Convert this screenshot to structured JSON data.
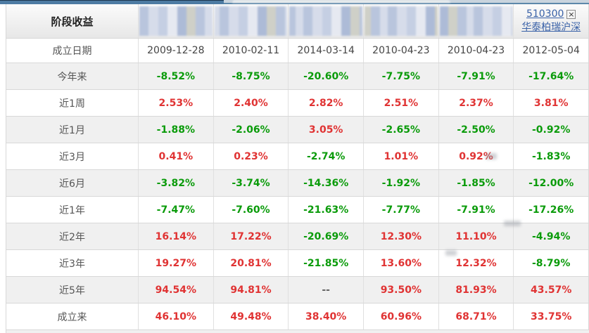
{
  "header": {
    "title": "阶段收益",
    "blurred_fund_count": 5,
    "selected_fund": {
      "code": "510300",
      "name": "华泰柏瑞沪深",
      "close_glyph": "×"
    }
  },
  "colors": {
    "positive_red": "#e03333",
    "negative_green": "#0a9b0a",
    "link_blue": "#3a62a8",
    "stripe_gray": "#f0f0f0"
  },
  "table": {
    "rows": [
      {
        "label": "成立日期",
        "type": "date",
        "values": [
          "2009-12-28",
          "2010-02-11",
          "2014-03-14",
          "2010-04-23",
          "2010-04-23",
          "2012-05-04"
        ]
      },
      {
        "label": "今年来",
        "type": "pct",
        "values": [
          "-8.52%",
          "-8.75%",
          "-20.60%",
          "-7.75%",
          "-7.91%",
          "-17.64%"
        ]
      },
      {
        "label": "近1周",
        "type": "pct",
        "values": [
          "2.53%",
          "2.40%",
          "2.82%",
          "2.51%",
          "2.37%",
          "3.81%"
        ]
      },
      {
        "label": "近1月",
        "type": "pct",
        "values": [
          "-1.88%",
          "-2.06%",
          "3.05%",
          "-2.65%",
          "-2.50%",
          "-0.92%"
        ]
      },
      {
        "label": "近3月",
        "type": "pct",
        "values": [
          "0.41%",
          "0.23%",
          "-2.74%",
          "1.01%",
          "0.92%",
          "-1.83%"
        ]
      },
      {
        "label": "近6月",
        "type": "pct",
        "values": [
          "-3.82%",
          "-3.74%",
          "-14.36%",
          "-1.92%",
          "-1.85%",
          "-12.00%"
        ]
      },
      {
        "label": "近1年",
        "type": "pct",
        "values": [
          "-7.47%",
          "-7.60%",
          "-21.63%",
          "-7.77%",
          "-7.91%",
          "-17.26%"
        ]
      },
      {
        "label": "近2年",
        "type": "pct",
        "values": [
          "16.14%",
          "17.22%",
          "-20.69%",
          "12.30%",
          "11.10%",
          "-4.94%"
        ]
      },
      {
        "label": "近3年",
        "type": "pct",
        "values": [
          "19.27%",
          "20.81%",
          "-21.85%",
          "13.60%",
          "12.32%",
          "-8.79%"
        ]
      },
      {
        "label": "近5年",
        "type": "pct",
        "values": [
          "94.54%",
          "94.81%",
          "--",
          "93.50%",
          "81.93%",
          "43.57%"
        ]
      },
      {
        "label": "成立来",
        "type": "pct",
        "values": [
          "46.10%",
          "49.48%",
          "38.40%",
          "60.96%",
          "68.71%",
          "33.75%"
        ]
      }
    ]
  }
}
